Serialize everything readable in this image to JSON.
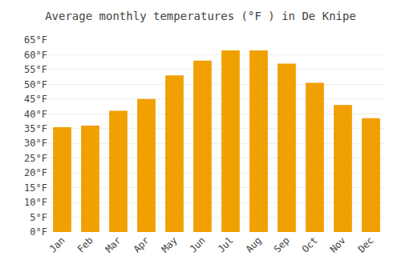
{
  "chart_data": {
    "type": "bar",
    "title": "Average monthly temperatures (°F ) in De Knipe",
    "categories": [
      "Jan",
      "Feb",
      "Mar",
      "Apr",
      "May",
      "Jun",
      "Jul",
      "Aug",
      "Sep",
      "Oct",
      "Nov",
      "Dec"
    ],
    "values": [
      35.5,
      36.0,
      41.0,
      45.0,
      53.0,
      58.0,
      61.5,
      61.5,
      57.0,
      50.5,
      43.0,
      38.5
    ],
    "color": "#F0A000",
    "ylim": [
      0,
      65
    ],
    "yticks": [
      {
        "value": 0,
        "label": "0°F"
      },
      {
        "value": 5,
        "label": "5°F"
      },
      {
        "value": 10,
        "label": "10°F"
      },
      {
        "value": 15,
        "label": "15°F"
      },
      {
        "value": 20,
        "label": "20°F"
      },
      {
        "value": 25,
        "label": "25°F"
      },
      {
        "value": 30,
        "label": "30°F"
      },
      {
        "value": 35,
        "label": "35°F"
      },
      {
        "value": 40,
        "label": "40°F"
      },
      {
        "value": 45,
        "label": "45°F"
      },
      {
        "value": 50,
        "label": "50°F"
      },
      {
        "value": 55,
        "label": "55°F"
      },
      {
        "value": 60,
        "label": "60°F"
      },
      {
        "value": 65,
        "label": "65°F"
      }
    ],
    "grid": true
  }
}
